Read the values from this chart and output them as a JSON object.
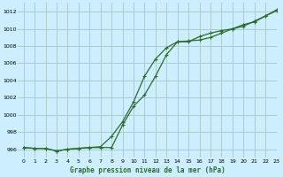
{
  "title": "Graphe pression niveau de la mer (hPa)",
  "background_color": "#cceeff",
  "grid_color": "#aacccc",
  "line_color": "#2d6a2d",
  "xlim": [
    -0.5,
    23
  ],
  "ylim": [
    995.0,
    1013.0
  ],
  "yticks": [
    996,
    998,
    1000,
    1002,
    1004,
    1006,
    1008,
    1010,
    1012
  ],
  "xticks": [
    0,
    1,
    2,
    3,
    4,
    5,
    6,
    7,
    8,
    9,
    10,
    11,
    12,
    13,
    14,
    15,
    16,
    17,
    18,
    19,
    20,
    21,
    22,
    23
  ],
  "line1_x": [
    0,
    1,
    2,
    3,
    4,
    5,
    6,
    7,
    8,
    9,
    10,
    11,
    12,
    13,
    14,
    15,
    16,
    17,
    18,
    19,
    20,
    21,
    22,
    23
  ],
  "line1_y": [
    996.2,
    996.1,
    996.1,
    995.8,
    996.0,
    996.1,
    996.2,
    996.2,
    996.2,
    998.8,
    1001.0,
    1002.3,
    1004.5,
    1007.0,
    1008.5,
    1008.5,
    1009.1,
    1009.5,
    1009.8,
    1010.0,
    1010.5,
    1010.8,
    1011.5,
    1012.1
  ],
  "line2_x": [
    0,
    1,
    2,
    3,
    4,
    5,
    6,
    7,
    8,
    9,
    10,
    11,
    12,
    13,
    14,
    15,
    16,
    17,
    18,
    19,
    20,
    21,
    22,
    23
  ],
  "line2_y": [
    996.2,
    996.1,
    996.1,
    995.8,
    996.0,
    996.1,
    996.2,
    996.3,
    997.5,
    999.2,
    1001.5,
    1004.5,
    1006.5,
    1007.8,
    1008.5,
    1008.6,
    1008.7,
    1009.0,
    1009.5,
    1010.0,
    1010.3,
    1010.9,
    1011.5,
    1012.2
  ]
}
